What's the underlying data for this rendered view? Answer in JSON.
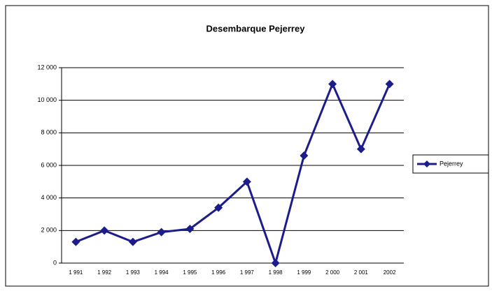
{
  "chart_data": {
    "type": "line",
    "title": "Desembarque Pejerrey",
    "categories": [
      "1 991",
      "1 992",
      "1 993",
      "1 994",
      "1 995",
      "1 996",
      "1 997",
      "1 998",
      "1 999",
      "2 000",
      "2 001",
      "2002"
    ],
    "series": [
      {
        "name": "Pejerrey",
        "color": "#1c1c8c",
        "values": [
          1300,
          2000,
          1300,
          1900,
          2100,
          3400,
          5000,
          0,
          6600,
          11000,
          7000,
          11000
        ]
      }
    ],
    "ylim": [
      0,
      12000
    ],
    "yticks": [
      0,
      {
        "value": 2000,
        "label": "2 000"
      },
      {
        "value": 4000,
        "label": "4 000"
      },
      {
        "value": 6000,
        "label": "6 000"
      },
      {
        "value": 8000,
        "label": "8 000"
      },
      {
        "value": 10000,
        "label": "10 000"
      },
      {
        "value": 12000,
        "label": "12 000"
      }
    ],
    "grid": true,
    "legend": "right"
  }
}
